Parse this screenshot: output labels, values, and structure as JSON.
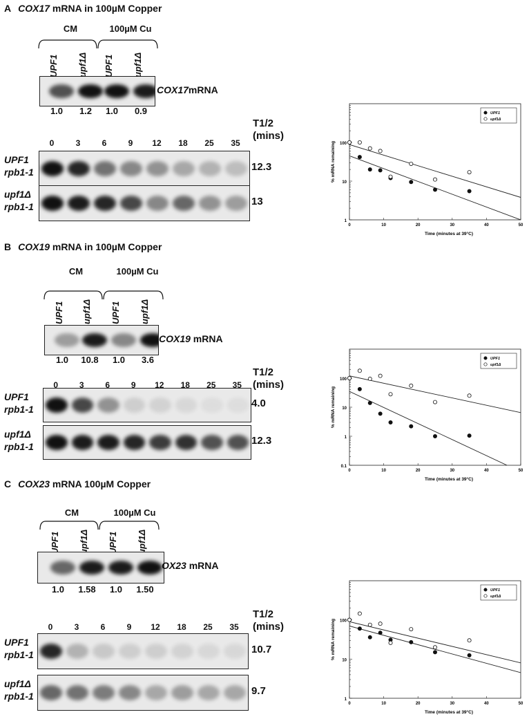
{
  "panels": [
    {
      "letter": "A",
      "title_gene": "COX17",
      "title_rest": " mRNA in 100µM Copper",
      "group_left": "CM",
      "group_right": "100µM Cu",
      "lanes": [
        "UPF1",
        "upf1Δ",
        "UPF1",
        "upf1Δ"
      ],
      "ratios": [
        "1.0",
        "1.2",
        "1.0",
        "0.9"
      ],
      "mrna_gene": "COX17",
      "mrna_rest": "mRNA",
      "thalf_label": "T1/2",
      "thalf_mins": "(mins)",
      "timepoints": [
        "0",
        "3",
        "6",
        "9",
        "12",
        "18",
        "25",
        "35"
      ],
      "strain1_a": "UPF1",
      "strain1_b": "rpb1-1",
      "strain2_a": "upf1Δ",
      "strain2_b": "rpb1-1",
      "thalf1": "12.3",
      "thalf2": "13"
    },
    {
      "letter": "B",
      "title_gene": "COX19",
      "title_rest": " mRNA in 100µM Copper",
      "group_left": "CM",
      "group_right": "100µM Cu",
      "lanes": [
        "UPF1",
        "upf1Δ",
        "UPF1",
        "upf1Δ"
      ],
      "ratios": [
        "1.0",
        "10.8",
        "1.0",
        "3.6"
      ],
      "mrna_gene": "COX19",
      "mrna_rest": " mRNA",
      "thalf_label": "T1/2",
      "thalf_mins": "(mins)",
      "timepoints": [
        "0",
        "3",
        "6",
        "9",
        "12",
        "18",
        "25",
        "35"
      ],
      "strain1_a": "UPF1",
      "strain1_b": "rpb1-1",
      "strain2_a": "upf1Δ",
      "strain2_b": "rpb1-1",
      "thalf1": "4.0",
      "thalf2": "12.3"
    },
    {
      "letter": "C",
      "title_gene": "COX23",
      "title_rest": " mRNA 100µM Copper",
      "group_left": "CM",
      "group_right": "100µM Cu",
      "lanes": [
        "UPF1",
        "upf1Δ",
        "UPF1",
        "upf1Δ"
      ],
      "ratios": [
        "1.0",
        "1.58",
        "1.0",
        "1.50"
      ],
      "mrna_gene": "OX23",
      "mrna_rest": " mRNA",
      "thalf_label": "T1/2",
      "thalf_mins": "(mins)",
      "timepoints": [
        "0",
        "3",
        "6",
        "9",
        "12",
        "18",
        "25",
        "35"
      ],
      "strain1_a": "UPF1",
      "strain1_b": "rpb1-1",
      "strain2_a": "upf1Δ",
      "strain2_b": "rpb1-1",
      "thalf1": "10.7",
      "thalf2": "9.7"
    }
  ],
  "chart_data": [
    {
      "type": "scatter",
      "scale": "log-y",
      "xlabel": "Time (minutes at 39°C)",
      "ylabel": "% mRNA remaining",
      "xlim": [
        0,
        50
      ],
      "ylim": [
        1,
        1000
      ],
      "x_ticks": [
        "0",
        "10",
        "20",
        "30",
        "40",
        "50"
      ],
      "y_ticks": [
        "1",
        "10",
        "100"
      ],
      "legend_position": "top-right",
      "series": [
        {
          "name": "UPF1",
          "marker": "filled",
          "x": [
            0,
            3,
            6,
            9,
            12,
            18,
            25,
            35
          ],
          "y": [
            100,
            42,
            20,
            19,
            12,
            9.5,
            6,
            5.5
          ],
          "fit": [
            [
              0,
              45
            ],
            [
              50,
              1
            ]
          ]
        },
        {
          "name": "upf1Δ",
          "marker": "open",
          "x": [
            0,
            3,
            6,
            9,
            12,
            18,
            25,
            35
          ],
          "y": [
            100,
            100,
            70,
            60,
            13,
            28,
            11,
            17
          ],
          "fit": [
            [
              0,
              88
            ],
            [
              50,
              3.8
            ]
          ]
        }
      ]
    },
    {
      "type": "scatter",
      "scale": "log-y",
      "xlabel": "Time (minutes at 39°C)",
      "ylabel": "% mRNA remaining",
      "xlim": [
        0,
        50
      ],
      "ylim": [
        0.1,
        1000
      ],
      "x_ticks": [
        "0",
        "10",
        "20",
        "30",
        "40",
        "50"
      ],
      "y_ticks": [
        "0.1",
        "1",
        "10",
        "100"
      ],
      "legend_position": "top-right",
      "series": [
        {
          "name": "UPF1",
          "marker": "filled",
          "x": [
            0,
            3,
            6,
            9,
            12,
            18,
            25,
            35
          ],
          "y": [
            100,
            42,
            14,
            6,
            3,
            2.2,
            1,
            1.05
          ],
          "fit": [
            [
              0,
              35
            ],
            [
              46,
              0.1
            ]
          ]
        },
        {
          "name": "upf1Δ",
          "marker": "open",
          "x": [
            0,
            3,
            6,
            9,
            12,
            18,
            25,
            35
          ],
          "y": [
            100,
            180,
            95,
            120,
            28,
            55,
            15,
            25
          ],
          "fit": [
            [
              0,
              120
            ],
            [
              50,
              6.5
            ]
          ]
        }
      ]
    },
    {
      "type": "scatter",
      "scale": "log-y",
      "xlabel": "Time (minutes at 39°C)",
      "ylabel": "% mRNA remaining",
      "xlim": [
        0,
        50
      ],
      "ylim": [
        1,
        1000
      ],
      "x_ticks": [
        "0",
        "10",
        "20",
        "30",
        "40",
        "50"
      ],
      "y_ticks": [
        "1",
        "10",
        "100"
      ],
      "legend_position": "top-right",
      "series": [
        {
          "name": "UPF1",
          "marker": "filled",
          "x": [
            0,
            3,
            6,
            9,
            12,
            18,
            25,
            35
          ],
          "y": [
            100,
            60,
            36,
            47,
            31,
            27,
            15,
            12.5
          ],
          "fit": [
            [
              0,
              70
            ],
            [
              50,
              4.5
            ]
          ]
        },
        {
          "name": "upf1Δ",
          "marker": "open",
          "x": [
            0,
            3,
            6,
            9,
            12,
            18,
            25,
            35
          ],
          "y": [
            100,
            145,
            75,
            80,
            26,
            58,
            20,
            30
          ],
          "fit": [
            [
              0,
              90
            ],
            [
              50,
              8
            ]
          ]
        }
      ]
    }
  ]
}
